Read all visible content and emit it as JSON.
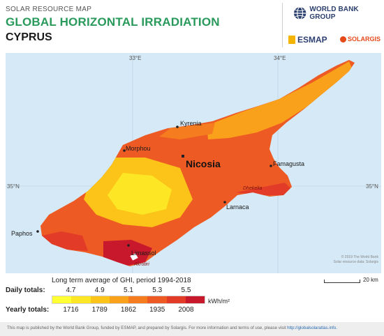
{
  "header": {
    "kicker": "SOLAR RESOURCE MAP",
    "title": "GLOBAL HORIZONTAL IRRADIATION",
    "country": "CYPRUS",
    "logos": {
      "world_bank": "WORLD BANK GROUP",
      "esmap": "ESMAP",
      "solargis": "SOLARGIS"
    }
  },
  "map": {
    "graticule": {
      "lon_labels": [
        "33°E",
        "34°E"
      ],
      "lat_label_left": "35°N",
      "lat_label_right": "35°N"
    },
    "cities": [
      {
        "name": "Kyrenia",
        "major": false
      },
      {
        "name": "Morphou",
        "major": false
      },
      {
        "name": "Nicosia",
        "major": true
      },
      {
        "name": "Famagusta",
        "major": false
      },
      {
        "name": "Larnaca",
        "major": false
      },
      {
        "name": "Paphos",
        "major": false
      },
      {
        "name": "Limassol",
        "major": false
      }
    ],
    "areas": [
      {
        "name": "Dhekelia"
      },
      {
        "name": "Akrotiri"
      }
    ],
    "copyright_line1": "© 2019 The World Bank",
    "copyright_line2": "Solar resource data: Solargis",
    "scale_label": "20 km"
  },
  "legend": {
    "title": "Long term average of GHI, period 1994-2018",
    "daily_label": "Daily totals:",
    "yearly_label": "Yearly totals:",
    "daily_ticks": [
      "4.7",
      "4.9",
      "5.1",
      "5.3",
      "5.5"
    ],
    "yearly_ticks": [
      "1716",
      "1789",
      "1862",
      "1935",
      "2008"
    ],
    "unit": "kWh/m²",
    "colors": [
      "#ffff33",
      "#fde725",
      "#fcc419",
      "#f9a11b",
      "#f57c1f",
      "#ee5a24",
      "#e23b28",
      "#c7182c"
    ]
  },
  "footer": {
    "text": "This map is published by the World Bank Group, funded by ESMAP, and prepared by Solargis. For more information and terms of use, please visit ",
    "link": "http://globalsolaratlas.info."
  }
}
